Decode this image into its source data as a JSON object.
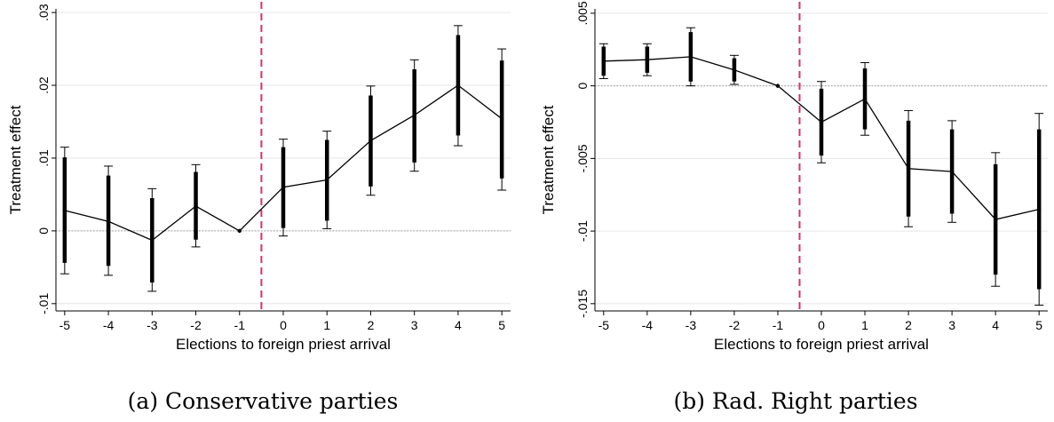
{
  "chart_data": [
    {
      "type": "line",
      "caption": "(a) Conservative parties",
      "xlabel": "Elections to foreign priest arrival",
      "ylabel": "Treatment effect",
      "x": [
        -5,
        -4,
        -3,
        -2,
        -1,
        0,
        1,
        2,
        3,
        4,
        5
      ],
      "x_tick_labels": [
        "-5",
        "-4",
        "-3",
        "-2",
        "-1",
        "0",
        "1",
        "2",
        "3",
        "4",
        "5"
      ],
      "y_ticks": [
        -0.01,
        0,
        0.01,
        0.02,
        0.03
      ],
      "y_tick_labels": [
        "-.01",
        "0",
        ".01",
        ".02",
        ".03"
      ],
      "ylim": [
        -0.011,
        0.0305
      ],
      "xlim": [
        -5.2,
        5.2
      ],
      "estimate": [
        0.0028,
        0.0013,
        -0.0013,
        0.0034,
        0.0,
        0.006,
        0.007,
        0.0124,
        0.0159,
        0.02,
        0.0154
      ],
      "ci95": [
        [
          -0.0059,
          0.0115
        ],
        [
          -0.0061,
          0.0089
        ],
        [
          -0.0083,
          0.0058
        ],
        [
          -0.0022,
          0.0091
        ],
        [
          0.0,
          0.0
        ],
        [
          -0.0007,
          0.0126
        ],
        [
          0.0003,
          0.0137
        ],
        [
          0.0049,
          0.0199
        ],
        [
          0.0082,
          0.0235
        ],
        [
          0.0117,
          0.0282
        ],
        [
          0.0056,
          0.025
        ]
      ],
      "ci90": [
        [
          -0.0044,
          0.0101
        ],
        [
          -0.0048,
          0.0076
        ],
        [
          -0.0071,
          0.0045
        ],
        [
          -0.0012,
          0.0081
        ],
        [
          0.0,
          0.0
        ],
        [
          0.0004,
          0.0115
        ],
        [
          0.0014,
          0.0125
        ],
        [
          0.0061,
          0.0186
        ],
        [
          0.0094,
          0.0222
        ],
        [
          0.0131,
          0.0269
        ],
        [
          0.0072,
          0.0234
        ]
      ],
      "reference_line_y": 0,
      "vertical_line_x": -0.5,
      "colors": {
        "line": "#000000",
        "vline": "#d6336c",
        "grid": "#e6e6e6",
        "zero": "#999999"
      }
    },
    {
      "type": "line",
      "caption": "(b) Rad. Right parties",
      "xlabel": "Elections to foreign priest arrival",
      "ylabel": "Treatment effect",
      "x": [
        -5,
        -4,
        -3,
        -2,
        -1,
        0,
        1,
        2,
        3,
        4,
        5
      ],
      "x_tick_labels": [
        "-5",
        "-4",
        "-3",
        "-2",
        "-1",
        "0",
        "1",
        "2",
        "3",
        "4",
        "5"
      ],
      "y_ticks": [
        -0.015,
        -0.01,
        -0.005,
        0,
        0.005
      ],
      "y_tick_labels": [
        "-.015",
        "-.01",
        "-.005",
        "0",
        ".005"
      ],
      "ylim": [
        -0.0155,
        0.0053
      ],
      "xlim": [
        -5.2,
        5.2
      ],
      "estimate": [
        0.0017,
        0.0018,
        0.002,
        0.0011,
        0.0,
        -0.0025,
        -0.0009,
        -0.0057,
        -0.0059,
        -0.0092,
        -0.0085
      ],
      "ci95": [
        [
          0.0005,
          0.0029
        ],
        [
          0.0007,
          0.0029
        ],
        [
          0.0,
          0.004
        ],
        [
          0.0001,
          0.0021
        ],
        [
          0.0,
          0.0
        ],
        [
          -0.0053,
          0.0003
        ],
        [
          -0.0034,
          0.0016
        ],
        [
          -0.0097,
          -0.0017
        ],
        [
          -0.0094,
          -0.0024
        ],
        [
          -0.0138,
          -0.0046
        ],
        [
          -0.0151,
          -0.0019
        ]
      ],
      "ci90": [
        [
          0.0007,
          0.0027
        ],
        [
          0.0009,
          0.0027
        ],
        [
          0.0003,
          0.0037
        ],
        [
          0.0003,
          0.0019
        ],
        [
          0.0,
          0.0
        ],
        [
          -0.0048,
          -0.0002
        ],
        [
          -0.003,
          0.0012
        ],
        [
          -0.009,
          -0.0024
        ],
        [
          -0.0088,
          -0.003
        ],
        [
          -0.013,
          -0.0054
        ],
        [
          -0.014,
          -0.003
        ]
      ],
      "reference_line_y": 0,
      "vertical_line_x": -0.5,
      "colors": {
        "line": "#000000",
        "vline": "#d6336c",
        "grid": "#e6e6e6",
        "zero": "#999999"
      }
    }
  ]
}
